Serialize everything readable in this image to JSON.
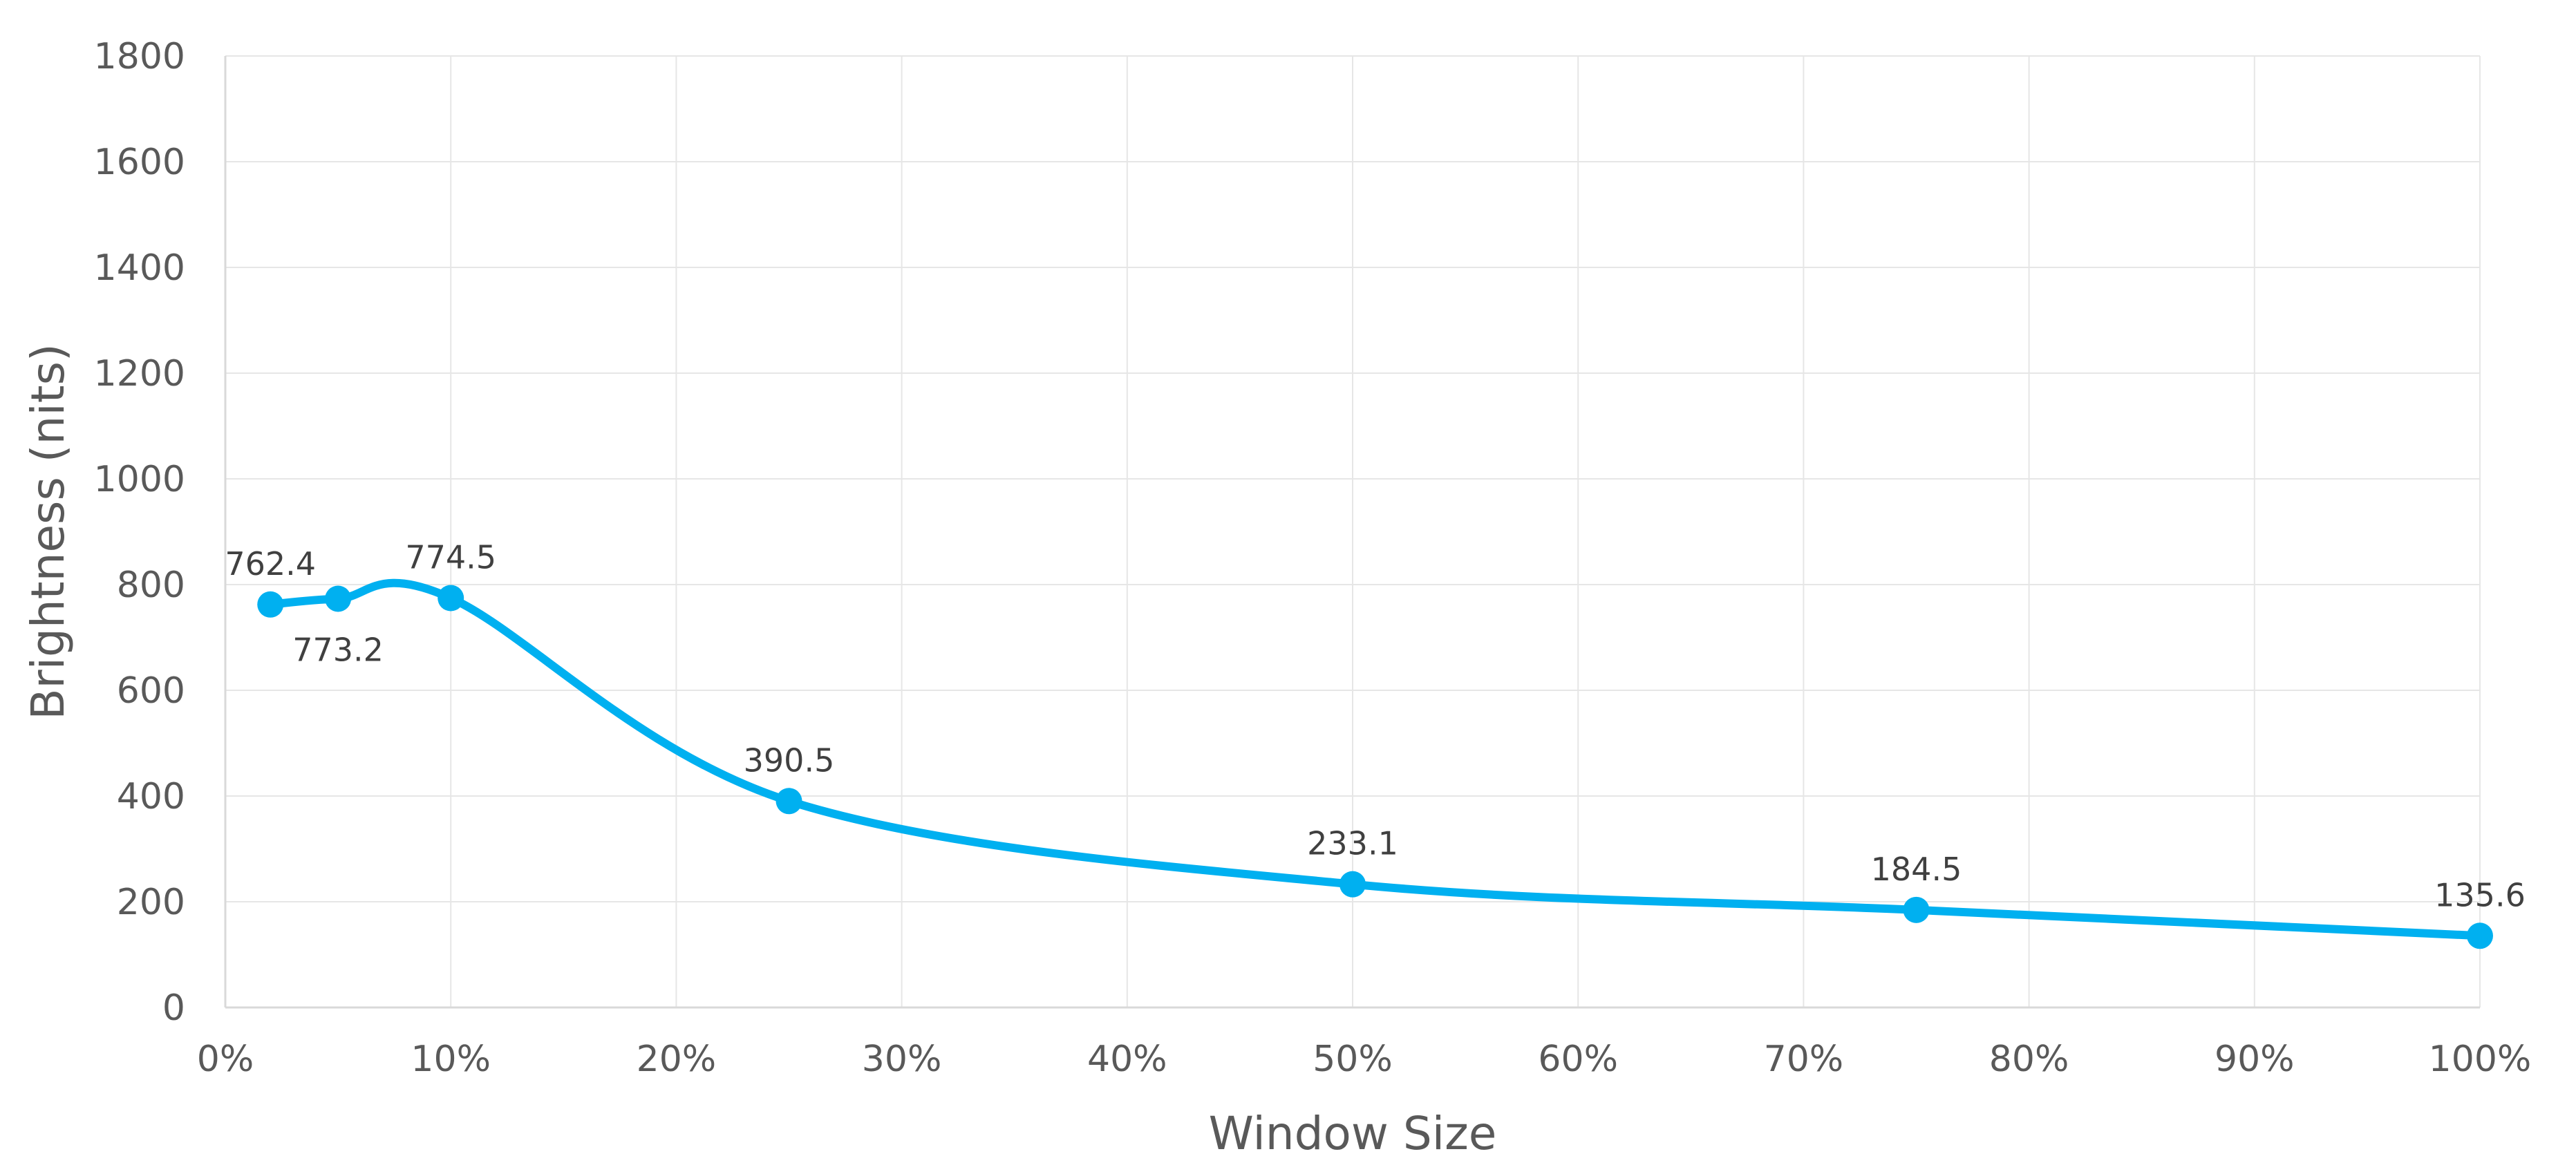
{
  "chart_data": {
    "type": "line",
    "xlabel": "Window Size",
    "ylabel": "Brightness (nits)",
    "x_unit": "%",
    "xlim": [
      0,
      100
    ],
    "ylim": [
      0,
      1800
    ],
    "x_ticks": [
      0,
      10,
      20,
      30,
      40,
      50,
      60,
      70,
      80,
      90,
      100
    ],
    "x_tick_labels": [
      "0%",
      "10%",
      "20%",
      "30%",
      "40%",
      "50%",
      "60%",
      "70%",
      "80%",
      "90%",
      "100%"
    ],
    "y_ticks": [
      0,
      200,
      400,
      600,
      800,
      1000,
      1200,
      1400,
      1600,
      1800
    ],
    "y_tick_labels": [
      "0",
      "200",
      "400",
      "600",
      "800",
      "1000",
      "1200",
      "1400",
      "1600",
      "1800"
    ],
    "grid": true,
    "smooth": true,
    "line_color": "#00B0F0",
    "series": [
      {
        "points": [
          {
            "x": 2,
            "y": 762.4,
            "label": "762.4",
            "label_position": "above"
          },
          {
            "x": 5,
            "y": 773.2,
            "label": "773.2",
            "label_position": "below"
          },
          {
            "x": 10,
            "y": 774.5,
            "label": "774.5",
            "label_position": "above"
          },
          {
            "x": 25,
            "y": 390.5,
            "label": "390.5",
            "label_position": "above"
          },
          {
            "x": 50,
            "y": 233.1,
            "label": "233.1",
            "label_position": "above"
          },
          {
            "x": 75,
            "y": 184.5,
            "label": "184.5",
            "label_position": "above"
          },
          {
            "x": 100,
            "y": 135.6,
            "label": "135.6",
            "label_position": "above"
          }
        ]
      }
    ]
  }
}
